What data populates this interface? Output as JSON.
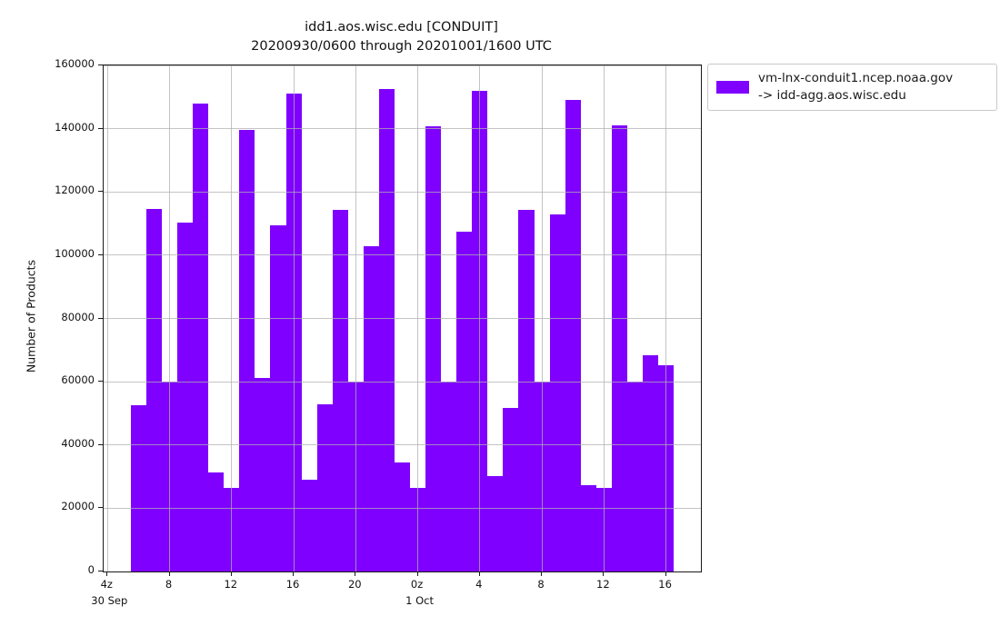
{
  "title": {
    "line1": "idd1.aos.wisc.edu [CONDUIT]",
    "line2": "20200930/0600 through 20201001/1600 UTC"
  },
  "legend": {
    "line1": "vm-lnx-conduit1.ncep.noaa.gov",
    "line2": "-> idd-agg.aos.wisc.edu"
  },
  "chart_data": {
    "type": "bar",
    "title": "idd1.aos.wisc.edu [CONDUIT] 20200930/0600 through 20201001/1600 UTC",
    "xlabel": "",
    "ylabel": "Number of Products",
    "ylim": [
      0,
      160000
    ],
    "ytick_step": 20000,
    "xlim_hours": [
      3.75,
      42.25
    ],
    "bar_width_hours": 1,
    "grid": true,
    "legend_position": "upper right, outside plot",
    "bar_color": "#7f00ff",
    "grid_color": "#b0b0b0",
    "xticks": [
      {
        "hour": 4,
        "label": "4z",
        "sub": "30 Sep"
      },
      {
        "hour": 8,
        "label": "8"
      },
      {
        "hour": 12,
        "label": "12"
      },
      {
        "hour": 16,
        "label": "16"
      },
      {
        "hour": 20,
        "label": "20"
      },
      {
        "hour": 24,
        "label": "0z",
        "sub": "1 Oct"
      },
      {
        "hour": 28,
        "label": "4"
      },
      {
        "hour": 32,
        "label": "8"
      },
      {
        "hour": 36,
        "label": "12"
      },
      {
        "hour": 40,
        "label": "16"
      }
    ],
    "series": [
      {
        "name": "vm-lnx-conduit1.ncep.noaa.gov -> idd-agg.aos.wisc.edu",
        "points": [
          {
            "hour": 6,
            "value": 52500
          },
          {
            "hour": 7,
            "value": 114500
          },
          {
            "hour": 8,
            "value": 60000
          },
          {
            "hour": 9,
            "value": 110300
          },
          {
            "hour": 10,
            "value": 147800
          },
          {
            "hour": 11,
            "value": 31300
          },
          {
            "hour": 12,
            "value": 26400
          },
          {
            "hour": 13,
            "value": 139700
          },
          {
            "hour": 14,
            "value": 61300
          },
          {
            "hour": 15,
            "value": 109500
          },
          {
            "hour": 16,
            "value": 151000
          },
          {
            "hour": 17,
            "value": 29000
          },
          {
            "hour": 18,
            "value": 52800
          },
          {
            "hour": 19,
            "value": 114400
          },
          {
            "hour": 20,
            "value": 60000
          },
          {
            "hour": 21,
            "value": 102800
          },
          {
            "hour": 22,
            "value": 152600
          },
          {
            "hour": 23,
            "value": 34500
          },
          {
            "hour": 24,
            "value": 26400
          },
          {
            "hour": 25,
            "value": 140800
          },
          {
            "hour": 26,
            "value": 60000
          },
          {
            "hour": 27,
            "value": 107300
          },
          {
            "hour": 28,
            "value": 152100
          },
          {
            "hour": 29,
            "value": 30200
          },
          {
            "hour": 30,
            "value": 51700
          },
          {
            "hour": 31,
            "value": 114400
          },
          {
            "hour": 32,
            "value": 60000
          },
          {
            "hour": 33,
            "value": 113000
          },
          {
            "hour": 34,
            "value": 149200
          },
          {
            "hour": 35,
            "value": 27200
          },
          {
            "hour": 36,
            "value": 26400
          },
          {
            "hour": 37,
            "value": 141000
          },
          {
            "hour": 38,
            "value": 60000
          },
          {
            "hour": 39,
            "value": 68300
          },
          {
            "hour": 40,
            "value": 65200
          }
        ]
      }
    ]
  }
}
